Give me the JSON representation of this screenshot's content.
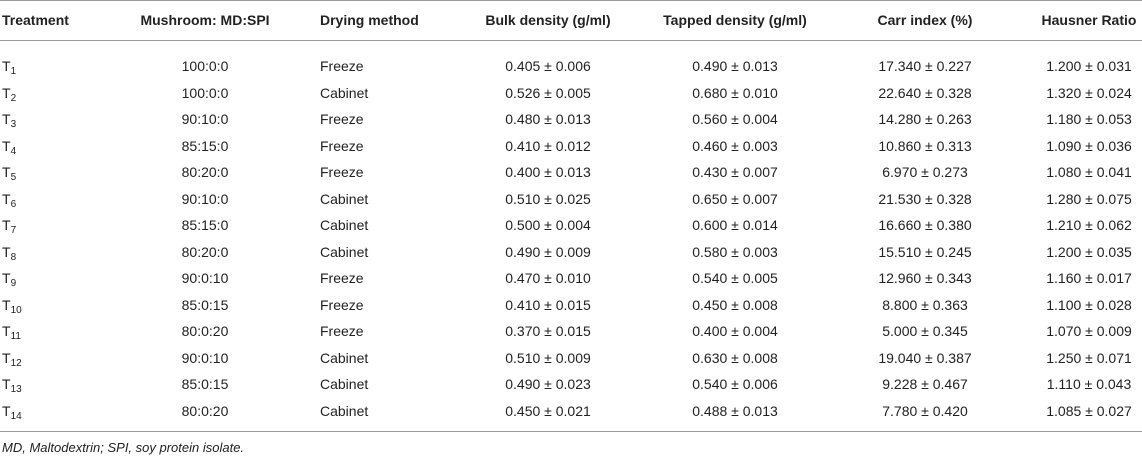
{
  "table": {
    "headers": [
      "Treatment",
      "Mushroom: MD:SPI",
      "Drying method",
      "Bulk density (g/ml)",
      "Tapped density (g/ml)",
      "Carr index (%)",
      "Hausner Ratio"
    ],
    "rows": [
      [
        {
          "base": "T",
          "sub": "1"
        },
        "100:0:0",
        "Freeze",
        "0.405 ± 0.006",
        "0.490 ± 0.013",
        "17.340 ± 0.227",
        "1.200 ± 0.031"
      ],
      [
        {
          "base": "T",
          "sub": "2"
        },
        "100:0:0",
        "Cabinet",
        "0.526 ± 0.005",
        "0.680 ± 0.010",
        "22.640 ± 0.328",
        "1.320 ± 0.024"
      ],
      [
        {
          "base": "T",
          "sub": "3"
        },
        "90:10:0",
        "Freeze",
        "0.480 ± 0.013",
        "0.560 ± 0.004",
        "14.280 ± 0.263",
        "1.180 ± 0.053"
      ],
      [
        {
          "base": "T",
          "sub": "4"
        },
        "85:15:0",
        "Freeze",
        "0.410 ± 0.012",
        "0.460 ± 0.003",
        "10.860 ± 0.313",
        "1.090 ± 0.036"
      ],
      [
        {
          "base": "T",
          "sub": "5"
        },
        "80:20:0",
        "Freeze",
        "0.400 ± 0.013",
        "0.430 ± 0.007",
        "6.970 ± 0.273",
        "1.080 ± 0.041"
      ],
      [
        {
          "base": "T",
          "sub": "6"
        },
        "90:10:0",
        "Cabinet",
        "0.510 ± 0.025",
        "0.650 ± 0.007",
        "21.530 ± 0.328",
        "1.280 ± 0.075"
      ],
      [
        {
          "base": "T",
          "sub": "7"
        },
        "85:15:0",
        "Cabinet",
        "0.500 ± 0.004",
        "0.600 ± 0.014",
        "16.660 ± 0.380",
        "1.210 ± 0.062"
      ],
      [
        {
          "base": "T",
          "sub": "8"
        },
        "80:20:0",
        "Cabinet",
        "0.490 ± 0.009",
        "0.580 ± 0.003",
        "15.510 ± 0.245",
        "1.200 ± 0.035"
      ],
      [
        {
          "base": "T",
          "sub": "9"
        },
        "90:0:10",
        "Freeze",
        "0.470 ± 0.010",
        "0.540 ± 0.005",
        "12.960 ± 0.343",
        "1.160 ± 0.017"
      ],
      [
        {
          "base": "T",
          "sub": "10"
        },
        "85:0:15",
        "Freeze",
        "0.410 ± 0.015",
        "0.450 ± 0.008",
        "8.800 ± 0.363",
        "1.100 ± 0.028"
      ],
      [
        {
          "base": "T",
          "sub": "11"
        },
        "80:0:20",
        "Freeze",
        "0.370 ± 0.015",
        "0.400 ± 0.004",
        "5.000 ± 0.345",
        "1.070 ± 0.009"
      ],
      [
        {
          "base": "T",
          "sub": "12"
        },
        "90:0:10",
        "Cabinet",
        "0.510 ± 0.009",
        "0.630 ± 0.008",
        "19.040 ± 0.387",
        "1.250 ± 0.071"
      ],
      [
        {
          "base": "T",
          "sub": "13"
        },
        "85:0:15",
        "Cabinet",
        "0.490 ± 0.023",
        "0.540 ± 0.006",
        "9.228 ± 0.467",
        "1.110 ± 0.043"
      ],
      [
        {
          "base": "T",
          "sub": "14"
        },
        "80:0:20",
        "Cabinet",
        "0.450 ± 0.021",
        "0.488 ± 0.013",
        "7.780 ± 0.420",
        "1.085 ± 0.027"
      ]
    ],
    "footnote": "MD, Maltodextrin; SPI, soy protein isolate."
  }
}
